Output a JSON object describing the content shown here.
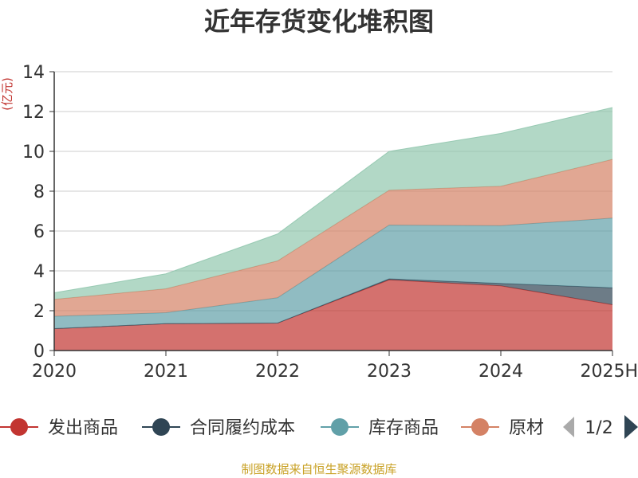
{
  "chart_data": {
    "type": "area",
    "stacked": true,
    "title": "近年存货变化堆积图",
    "ylabel": "(亿元)",
    "ylim": [
      0,
      14
    ],
    "yticks": [
      "0",
      "2",
      "4",
      "6",
      "8",
      "10",
      "12",
      "14"
    ],
    "categories": [
      "2020",
      "2021",
      "2022",
      "2023",
      "2024",
      "2025H"
    ],
    "series": [
      {
        "name": "发出商品",
        "color": "#c23531",
        "values": [
          1.1,
          1.35,
          1.38,
          3.55,
          3.25,
          2.3
        ]
      },
      {
        "name": "合同履约成本",
        "color": "#2f4554",
        "values": [
          0.0,
          0.0,
          0.0,
          0.05,
          0.12,
          0.85
        ]
      },
      {
        "name": "库存商品",
        "color": "#61a0a8",
        "values": [
          0.62,
          0.55,
          1.27,
          2.7,
          2.9,
          3.5
        ]
      },
      {
        "name": "原材料",
        "color": "#d48265",
        "values": [
          0.85,
          1.2,
          1.85,
          1.75,
          1.98,
          2.95
        ]
      },
      {
        "name": "",
        "color": "#91c7ae",
        "values": [
          0.33,
          0.75,
          1.35,
          1.95,
          2.65,
          2.6
        ]
      }
    ],
    "grid": true,
    "legend_position": "bottom"
  },
  "legend": {
    "items": [
      "发出商品",
      "合同履约成本",
      "库存商品",
      "原材"
    ],
    "page_indicator": "1/2",
    "prev_icon": "triangle-left-icon",
    "next_icon": "triangle-right-icon"
  },
  "source": "制图数据来自恒生聚源数据库"
}
